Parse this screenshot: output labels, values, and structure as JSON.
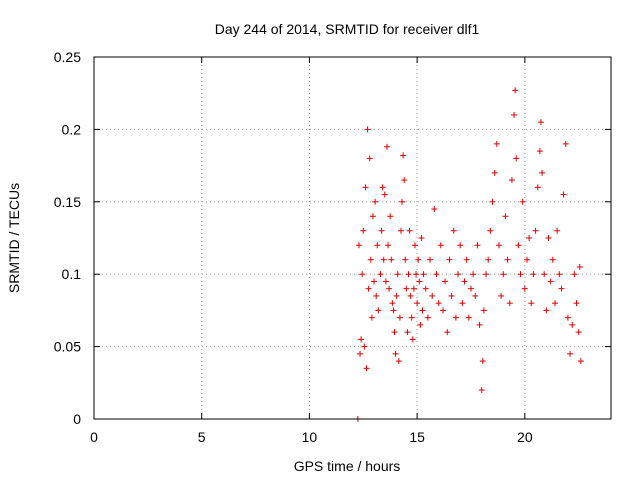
{
  "chart_data": {
    "type": "scatter",
    "title": "Day 244 of 2014, SRMTID for receiver dlf1",
    "xlabel": "GPS time / hours",
    "ylabel": "SRMTID / TECUs",
    "xlim": [
      0,
      24
    ],
    "ylim": [
      0,
      0.25
    ],
    "xticks": [
      "0",
      "5",
      "10",
      "15",
      "20"
    ],
    "yticks": [
      "0",
      "0.05",
      "0.1",
      "0.15",
      "0.2",
      "0.25"
    ],
    "grid": true,
    "marker": "+",
    "color": "#e00000",
    "series": [
      {
        "name": "dlf1",
        "points": [
          [
            12.25,
            0.0
          ],
          [
            12.3,
            0.12
          ],
          [
            12.35,
            0.045
          ],
          [
            12.4,
            0.055
          ],
          [
            12.45,
            0.1
          ],
          [
            12.5,
            0.13
          ],
          [
            12.55,
            0.05
          ],
          [
            12.6,
            0.16
          ],
          [
            12.65,
            0.035
          ],
          [
            12.7,
            0.2
          ],
          [
            12.75,
            0.09
          ],
          [
            12.8,
            0.18
          ],
          [
            12.85,
            0.11
          ],
          [
            12.9,
            0.07
          ],
          [
            12.95,
            0.14
          ],
          [
            13.0,
            0.095
          ],
          [
            13.05,
            0.15
          ],
          [
            13.1,
            0.085
          ],
          [
            13.15,
            0.12
          ],
          [
            13.2,
            0.075
          ],
          [
            13.3,
            0.1
          ],
          [
            13.35,
            0.13
          ],
          [
            13.4,
            0.16
          ],
          [
            13.45,
            0.11
          ],
          [
            13.5,
            0.155
          ],
          [
            13.55,
            0.095
          ],
          [
            13.6,
            0.188
          ],
          [
            13.65,
            0.12
          ],
          [
            13.7,
            0.09
          ],
          [
            13.75,
            0.14
          ],
          [
            13.8,
            0.11
          ],
          [
            13.85,
            0.08
          ],
          [
            13.9,
            0.075
          ],
          [
            13.95,
            0.06
          ],
          [
            14.0,
            0.045
          ],
          [
            14.05,
            0.085
          ],
          [
            14.1,
            0.1
          ],
          [
            14.15,
            0.04
          ],
          [
            14.2,
            0.07
          ],
          [
            14.25,
            0.13
          ],
          [
            14.3,
            0.15
          ],
          [
            14.35,
            0.182
          ],
          [
            14.4,
            0.165
          ],
          [
            14.45,
            0.11
          ],
          [
            14.5,
            0.09
          ],
          [
            14.55,
            0.06
          ],
          [
            14.6,
            0.1
          ],
          [
            14.65,
            0.13
          ],
          [
            14.7,
            0.085
          ],
          [
            14.75,
            0.07
          ],
          [
            14.8,
            0.055
          ],
          [
            14.85,
            0.09
          ],
          [
            14.9,
            0.12
          ],
          [
            14.95,
            0.1
          ],
          [
            15.0,
            0.08
          ],
          [
            15.05,
            0.11
          ],
          [
            15.1,
            0.095
          ],
          [
            15.15,
            0.065
          ],
          [
            15.2,
            0.125
          ],
          [
            15.25,
            0.075
          ],
          [
            15.3,
            0.1
          ],
          [
            15.4,
            0.09
          ],
          [
            15.5,
            0.07
          ],
          [
            15.6,
            0.11
          ],
          [
            15.7,
            0.085
          ],
          [
            15.8,
            0.145
          ],
          [
            15.9,
            0.1
          ],
          [
            16.0,
            0.08
          ],
          [
            16.1,
            0.12
          ],
          [
            16.2,
            0.075
          ],
          [
            16.3,
            0.095
          ],
          [
            16.4,
            0.06
          ],
          [
            16.5,
            0.11
          ],
          [
            16.6,
            0.085
          ],
          [
            16.7,
            0.13
          ],
          [
            16.8,
            0.07
          ],
          [
            16.9,
            0.1
          ],
          [
            17.0,
            0.12
          ],
          [
            17.1,
            0.08
          ],
          [
            17.2,
            0.095
          ],
          [
            17.3,
            0.11
          ],
          [
            17.4,
            0.07
          ],
          [
            17.5,
            0.09
          ],
          [
            17.6,
            0.1
          ],
          [
            17.7,
            0.085
          ],
          [
            17.8,
            0.12
          ],
          [
            17.9,
            0.065
          ],
          [
            18.0,
            0.02
          ],
          [
            18.05,
            0.04
          ],
          [
            18.1,
            0.075
          ],
          [
            18.2,
            0.1
          ],
          [
            18.3,
            0.11
          ],
          [
            18.4,
            0.13
          ],
          [
            18.5,
            0.15
          ],
          [
            18.6,
            0.17
          ],
          [
            18.7,
            0.19
          ],
          [
            18.8,
            0.12
          ],
          [
            18.9,
            0.085
          ],
          [
            19.0,
            0.1
          ],
          [
            19.1,
            0.14
          ],
          [
            19.2,
            0.11
          ],
          [
            19.3,
            0.08
          ],
          [
            19.4,
            0.165
          ],
          [
            19.5,
            0.21
          ],
          [
            19.55,
            0.227
          ],
          [
            19.6,
            0.18
          ],
          [
            19.7,
            0.12
          ],
          [
            19.8,
            0.1
          ],
          [
            19.9,
            0.15
          ],
          [
            20.0,
            0.09
          ],
          [
            20.1,
            0.11
          ],
          [
            20.2,
            0.125
          ],
          [
            20.3,
            0.08
          ],
          [
            20.4,
            0.1
          ],
          [
            20.5,
            0.13
          ],
          [
            20.6,
            0.16
          ],
          [
            20.7,
            0.185
          ],
          [
            20.75,
            0.205
          ],
          [
            20.8,
            0.17
          ],
          [
            20.9,
            0.1
          ],
          [
            21.0,
            0.075
          ],
          [
            21.1,
            0.125
          ],
          [
            21.2,
            0.095
          ],
          [
            21.3,
            0.11
          ],
          [
            21.4,
            0.08
          ],
          [
            21.5,
            0.13
          ],
          [
            21.6,
            0.1
          ],
          [
            21.7,
            0.09
          ],
          [
            21.8,
            0.155
          ],
          [
            21.9,
            0.19
          ],
          [
            22.0,
            0.07
          ],
          [
            22.1,
            0.045
          ],
          [
            22.2,
            0.065
          ],
          [
            22.3,
            0.1
          ],
          [
            22.4,
            0.08
          ],
          [
            22.5,
            0.06
          ],
          [
            22.55,
            0.105
          ],
          [
            22.6,
            0.04
          ]
        ]
      }
    ]
  }
}
